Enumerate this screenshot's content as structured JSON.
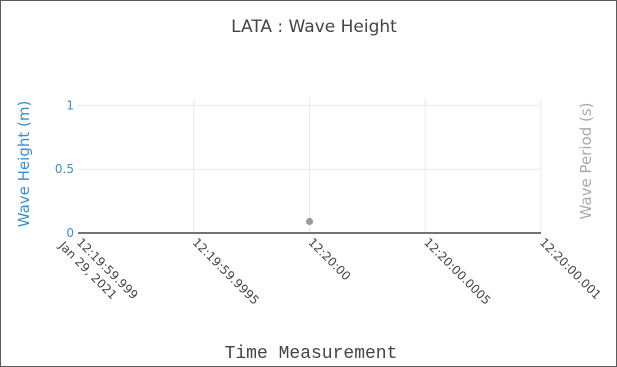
{
  "chart_data": {
    "type": "scatter",
    "title": "LATA : Wave Height",
    "xlabel": "Time Measurement",
    "ylabel": "Wave Height (m)",
    "y2label": "Wave Period (s)",
    "x_ticks": [
      {
        "value": -0.001,
        "lines": [
          "12:19:59.999",
          "Jan 29, 2021"
        ]
      },
      {
        "value": -0.0005,
        "lines": [
          "12:19:59.9995"
        ]
      },
      {
        "value": 0,
        "lines": [
          "12:20:00"
        ]
      },
      {
        "value": 0.0005,
        "lines": [
          "12:20:00.0005"
        ]
      },
      {
        "value": 0.001,
        "lines": [
          "12:20:00.001"
        ]
      }
    ],
    "y_ticks": [
      {
        "value": 0,
        "label": "0"
      },
      {
        "value": 0.5,
        "label": "0.5"
      },
      {
        "value": 1,
        "label": "1"
      }
    ],
    "xlim": [
      -0.001,
      0.001
    ],
    "ylim": [
      0,
      1.05
    ],
    "grid": true,
    "series": [
      {
        "color": "#9a9a9a",
        "points": [
          {
            "x": 0,
            "y": 0.09
          }
        ]
      }
    ],
    "colors": {
      "title": "#444444",
      "ylabel": "#3a8fcf",
      "y2label": "#aaaaaa",
      "ytick": "#3a8fcf",
      "xtick": "#444444",
      "grid": "#e8e8e8",
      "axis": "#444444"
    }
  }
}
